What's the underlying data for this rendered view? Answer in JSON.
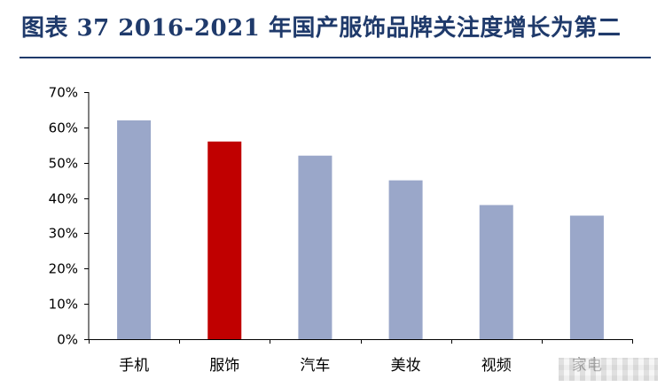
{
  "title": "图表 37    2016-2021 年国产服饰品牌关注度增长为第二",
  "colors": {
    "bar_default": "#9aa7c9",
    "bar_highlight": "#c00000",
    "title": "#1f3a6b",
    "axis": "#000000"
  },
  "chart_data": {
    "type": "bar",
    "title": "",
    "xlabel": "",
    "ylabel": "",
    "categories": [
      "手机",
      "服饰",
      "汽车",
      "美妆",
      "视频",
      "家电"
    ],
    "values": [
      0.62,
      0.56,
      0.52,
      0.45,
      0.38,
      0.35
    ],
    "highlight_index": 1,
    "ylim": [
      0,
      0.7
    ],
    "yticks": [
      0,
      0.1,
      0.2,
      0.3,
      0.4,
      0.5,
      0.6,
      0.7
    ],
    "ytick_labels": [
      "0%",
      "10%",
      "20%",
      "30%",
      "40%",
      "50%",
      "60%",
      "70%"
    ],
    "grid": false,
    "legend": "none"
  }
}
